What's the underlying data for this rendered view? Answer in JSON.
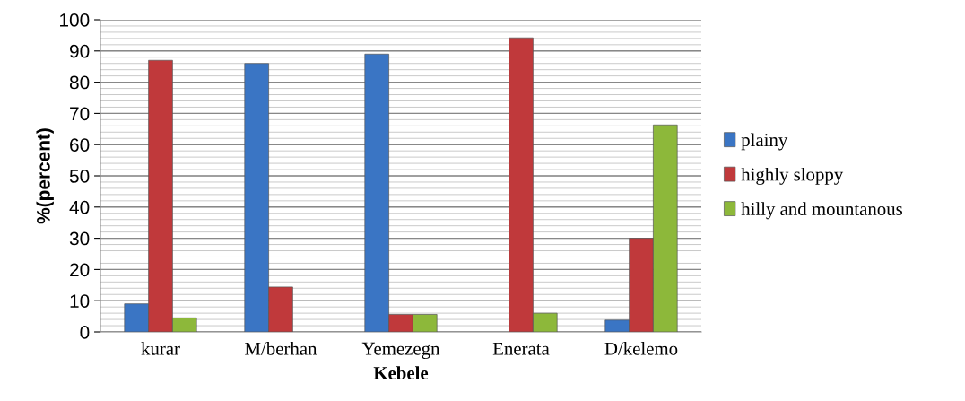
{
  "chart_data": {
    "type": "bar",
    "xlabel": "Kebele",
    "ylabel": "%(percent)",
    "categories": [
      "kurar",
      "M/berhan",
      "Yemezegn",
      "Enerata",
      "D/kelemo"
    ],
    "series": [
      {
        "name": "plainy",
        "color": "#3a75c4",
        "values": [
          9,
          86,
          89,
          null,
          3.8
        ]
      },
      {
        "name": "highly sloppy",
        "color": "#c0393b",
        "values": [
          87,
          14.4,
          5.6,
          94.2,
          30
        ]
      },
      {
        "name": "hilly and mountanous",
        "color": "#8db83a",
        "values": [
          4.5,
          null,
          5.6,
          6,
          66.3
        ]
      }
    ],
    "ylim": [
      0,
      100
    ],
    "yticks": [
      0,
      10,
      20,
      30,
      40,
      50,
      60,
      70,
      80,
      90,
      100
    ],
    "grid": "y",
    "legend": "right"
  }
}
